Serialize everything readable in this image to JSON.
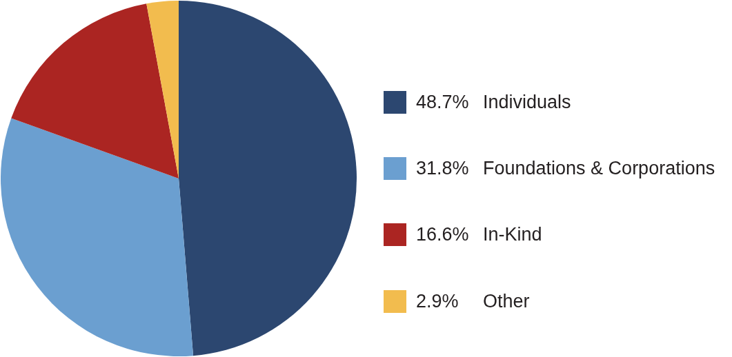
{
  "chart_data": {
    "type": "pie",
    "categories": [
      "Individuals",
      "Foundations & Corporations",
      "In-Kind",
      "Other"
    ],
    "values": [
      48.7,
      31.8,
      16.6,
      2.9
    ],
    "value_labels": [
      "48.7%",
      "31.8%",
      "16.6%",
      "2.9%"
    ],
    "colors": [
      "#2c4770",
      "#6b9fd0",
      "#ab2522",
      "#f2bc4e"
    ],
    "legend": "right"
  }
}
